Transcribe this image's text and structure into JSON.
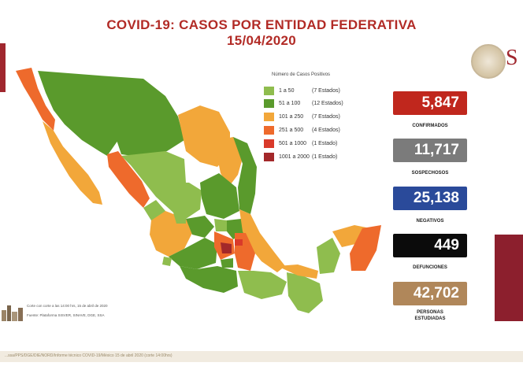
{
  "header": {
    "title": "COVID-19: CASOS POR ENTIDAD FEDERATIVA",
    "date": "15/04/2020"
  },
  "logo": {
    "text": "S"
  },
  "legend": {
    "title": "Número de Casos Positivos",
    "items": [
      {
        "range": "1 a 50",
        "count": "(7 Estados)",
        "color": "#8fbd4e"
      },
      {
        "range": "51 a 100",
        "count": "(12 Estados)",
        "color": "#5a9a2c"
      },
      {
        "range": "101 a 250",
        "count": "(7 Estados)",
        "color": "#f2a73a"
      },
      {
        "range": "251 a 500",
        "count": "(4 Estados)",
        "color": "#ee6a2c"
      },
      {
        "range": "501 a 1000",
        "count": "(1 Estado)",
        "color": "#d93a2a"
      },
      {
        "range": "1001 a 2000",
        "count": "(1 Estado)",
        "color": "#a3282a"
      }
    ]
  },
  "stats": [
    {
      "value": "5,847",
      "label": "CONFIRMADOS",
      "color": "#c0271d"
    },
    {
      "value": "11,717",
      "label": "SOSPECHOSOS",
      "color": "#7b7b7b"
    },
    {
      "value": "25,138",
      "label": "NEGATIVOS",
      "color": "#2a4a9a"
    },
    {
      "value": "449",
      "label": "DEFUNCIONES",
      "color": "#0b0b0b"
    },
    {
      "value": "42,702",
      "label": "PERSONAS ESTUDIADAS",
      "label_line1": "PERSONAS",
      "label_line2": "ESTUDIADAS",
      "color": "#b0875a"
    }
  ],
  "notes": {
    "cut": "Corte con corte a las 14:00 hrs, 15 de abril de 2020",
    "source": "Fuente: Plataforma SISVER, SINAVE, DGE, SSA"
  },
  "footer": "...ssa/PPS/DGE/DIE/NORD/Informe técnico COVID-19/México 15 de abril 2020 (corte 14:00hrs)"
}
